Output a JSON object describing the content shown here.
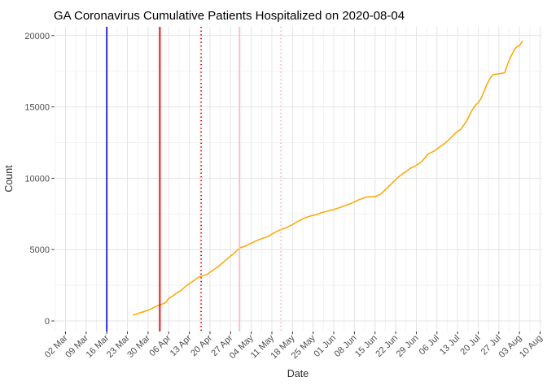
{
  "title": "GA Coronavirus Cumulative Patients Hospitalized on 2020-08-04",
  "chart_data": {
    "type": "line",
    "title": "GA Coronavirus Cumulative Patients Hospitalized on 2020-08-04",
    "xlabel": "Date",
    "ylabel": "Count",
    "ylim": [
      0,
      20000
    ],
    "grid": {
      "major_color": "#e4e4e4",
      "minor_color": "#f2f2f2",
      "background": "#ffffff"
    },
    "y_ticks": [
      0,
      5000,
      10000,
      15000,
      20000
    ],
    "x_ticks": [
      {
        "date": "2020-03-02",
        "label": "02 Mar"
      },
      {
        "date": "2020-03-09",
        "label": "09 Mar"
      },
      {
        "date": "2020-03-16",
        "label": "16 Mar"
      },
      {
        "date": "2020-03-23",
        "label": "23 Mar"
      },
      {
        "date": "2020-03-30",
        "label": "30 Mar"
      },
      {
        "date": "2020-04-06",
        "label": "06 Apr"
      },
      {
        "date": "2020-04-13",
        "label": "13 Apr"
      },
      {
        "date": "2020-04-20",
        "label": "20 Apr"
      },
      {
        "date": "2020-04-27",
        "label": "27 Apr"
      },
      {
        "date": "2020-05-04",
        "label": "04 May"
      },
      {
        "date": "2020-05-11",
        "label": "11 May"
      },
      {
        "date": "2020-05-18",
        "label": "18 May"
      },
      {
        "date": "2020-05-25",
        "label": "25 May"
      },
      {
        "date": "2020-06-01",
        "label": "01 Jun"
      },
      {
        "date": "2020-06-08",
        "label": "08 Jun"
      },
      {
        "date": "2020-06-15",
        "label": "15 Jun"
      },
      {
        "date": "2020-06-22",
        "label": "22 Jun"
      },
      {
        "date": "2020-06-29",
        "label": "29 Jun"
      },
      {
        "date": "2020-07-06",
        "label": "06 Jul"
      },
      {
        "date": "2020-07-13",
        "label": "13 Jul"
      },
      {
        "date": "2020-07-20",
        "label": "20 Jul"
      },
      {
        "date": "2020-07-27",
        "label": "27 Jul"
      },
      {
        "date": "2020-08-03",
        "label": "03 Aug"
      },
      {
        "date": "2020-08-10",
        "label": "10 Aug"
      }
    ],
    "vlines": [
      {
        "date": "2020-03-16",
        "color": "#1616d6",
        "style": "solid"
      },
      {
        "date": "2020-04-03",
        "color": "#ee0000",
        "style": "solid"
      },
      {
        "date": "2020-04-17",
        "color": "#ee0000",
        "style": "dotted"
      },
      {
        "date": "2020-04-30",
        "color": "#ffbcc8",
        "style": "solid"
      },
      {
        "date": "2020-05-14",
        "color": "#ffbcc8",
        "style": "dotted"
      }
    ],
    "series": [
      {
        "name": "cumulative-patients-hospitalized",
        "color": "#ffa500",
        "points": [
          [
            "2020-03-25",
            420
          ],
          [
            "2020-03-26",
            470
          ],
          [
            "2020-03-27",
            560
          ],
          [
            "2020-03-28",
            620
          ],
          [
            "2020-03-29",
            680
          ],
          [
            "2020-03-30",
            750
          ],
          [
            "2020-03-31",
            830
          ],
          [
            "2020-04-01",
            950
          ],
          [
            "2020-04-02",
            1050
          ],
          [
            "2020-04-03",
            1130
          ],
          [
            "2020-04-04",
            1200
          ],
          [
            "2020-04-05",
            1290
          ],
          [
            "2020-04-06",
            1590
          ],
          [
            "2020-04-07",
            1700
          ],
          [
            "2020-04-08",
            1850
          ],
          [
            "2020-04-09",
            1980
          ],
          [
            "2020-04-10",
            2100
          ],
          [
            "2020-04-11",
            2290
          ],
          [
            "2020-04-12",
            2480
          ],
          [
            "2020-04-13",
            2600
          ],
          [
            "2020-04-14",
            2750
          ],
          [
            "2020-04-15",
            2900
          ],
          [
            "2020-04-16",
            3060
          ],
          [
            "2020-04-17",
            3130
          ],
          [
            "2020-04-18",
            3200
          ],
          [
            "2020-04-19",
            3250
          ],
          [
            "2020-04-20",
            3420
          ],
          [
            "2020-04-21",
            3550
          ],
          [
            "2020-04-22",
            3700
          ],
          [
            "2020-04-23",
            3850
          ],
          [
            "2020-04-24",
            4020
          ],
          [
            "2020-04-25",
            4200
          ],
          [
            "2020-04-26",
            4380
          ],
          [
            "2020-04-27",
            4550
          ],
          [
            "2020-04-28",
            4700
          ],
          [
            "2020-04-29",
            4900
          ],
          [
            "2020-04-30",
            5120
          ],
          [
            "2020-05-01",
            5180
          ],
          [
            "2020-05-02",
            5250
          ],
          [
            "2020-05-03",
            5350
          ],
          [
            "2020-05-04",
            5450
          ],
          [
            "2020-05-05",
            5550
          ],
          [
            "2020-05-06",
            5650
          ],
          [
            "2020-05-07",
            5720
          ],
          [
            "2020-05-08",
            5800
          ],
          [
            "2020-05-09",
            5870
          ],
          [
            "2020-05-10",
            5950
          ],
          [
            "2020-05-11",
            6080
          ],
          [
            "2020-05-12",
            6200
          ],
          [
            "2020-05-13",
            6300
          ],
          [
            "2020-05-14",
            6400
          ],
          [
            "2020-05-15",
            6480
          ],
          [
            "2020-05-16",
            6550
          ],
          [
            "2020-05-17",
            6650
          ],
          [
            "2020-05-18",
            6750
          ],
          [
            "2020-05-19",
            6880
          ],
          [
            "2020-05-20",
            7000
          ],
          [
            "2020-05-21",
            7100
          ],
          [
            "2020-05-22",
            7200
          ],
          [
            "2020-05-23",
            7280
          ],
          [
            "2020-05-24",
            7350
          ],
          [
            "2020-05-25",
            7400
          ],
          [
            "2020-05-26",
            7450
          ],
          [
            "2020-05-27",
            7520
          ],
          [
            "2020-05-28",
            7600
          ],
          [
            "2020-05-29",
            7650
          ],
          [
            "2020-05-30",
            7700
          ],
          [
            "2020-05-31",
            7750
          ],
          [
            "2020-06-01",
            7800
          ],
          [
            "2020-06-02",
            7880
          ],
          [
            "2020-06-03",
            7950
          ],
          [
            "2020-06-04",
            8020
          ],
          [
            "2020-06-05",
            8100
          ],
          [
            "2020-06-06",
            8170
          ],
          [
            "2020-06-07",
            8250
          ],
          [
            "2020-06-08",
            8350
          ],
          [
            "2020-06-09",
            8450
          ],
          [
            "2020-06-10",
            8530
          ],
          [
            "2020-06-11",
            8600
          ],
          [
            "2020-06-12",
            8680
          ],
          [
            "2020-06-13",
            8700
          ],
          [
            "2020-06-14",
            8710
          ],
          [
            "2020-06-15",
            8720
          ],
          [
            "2020-06-16",
            8800
          ],
          [
            "2020-06-17",
            8900
          ],
          [
            "2020-06-18",
            9100
          ],
          [
            "2020-06-19",
            9300
          ],
          [
            "2020-06-20",
            9500
          ],
          [
            "2020-06-21",
            9700
          ],
          [
            "2020-06-22",
            9900
          ],
          [
            "2020-06-23",
            10100
          ],
          [
            "2020-06-24",
            10250
          ],
          [
            "2020-06-25",
            10400
          ],
          [
            "2020-06-26",
            10550
          ],
          [
            "2020-06-27",
            10700
          ],
          [
            "2020-06-28",
            10800
          ],
          [
            "2020-06-29",
            10900
          ],
          [
            "2020-06-30",
            11050
          ],
          [
            "2020-07-01",
            11200
          ],
          [
            "2020-07-02",
            11450
          ],
          [
            "2020-07-03",
            11700
          ],
          [
            "2020-07-04",
            11800
          ],
          [
            "2020-07-05",
            11900
          ],
          [
            "2020-07-06",
            12050
          ],
          [
            "2020-07-07",
            12200
          ],
          [
            "2020-07-08",
            12350
          ],
          [
            "2020-07-09",
            12500
          ],
          [
            "2020-07-10",
            12700
          ],
          [
            "2020-07-11",
            12900
          ],
          [
            "2020-07-12",
            13100
          ],
          [
            "2020-07-13",
            13300
          ],
          [
            "2020-07-14",
            13400
          ],
          [
            "2020-07-15",
            13700
          ],
          [
            "2020-07-16",
            14000
          ],
          [
            "2020-07-17",
            14400
          ],
          [
            "2020-07-18",
            14800
          ],
          [
            "2020-07-19",
            15100
          ],
          [
            "2020-07-20",
            15300
          ],
          [
            "2020-07-21",
            15600
          ],
          [
            "2020-07-22",
            16100
          ],
          [
            "2020-07-23",
            16600
          ],
          [
            "2020-07-24",
            17000
          ],
          [
            "2020-07-25",
            17250
          ],
          [
            "2020-07-26",
            17300
          ],
          [
            "2020-07-27",
            17320
          ],
          [
            "2020-07-28",
            17350
          ],
          [
            "2020-07-29",
            17400
          ],
          [
            "2020-07-30",
            18000
          ],
          [
            "2020-07-31",
            18500
          ],
          [
            "2020-08-01",
            18900
          ],
          [
            "2020-08-02",
            19200
          ],
          [
            "2020-08-03",
            19300
          ],
          [
            "2020-08-04",
            19600
          ]
        ]
      }
    ]
  }
}
